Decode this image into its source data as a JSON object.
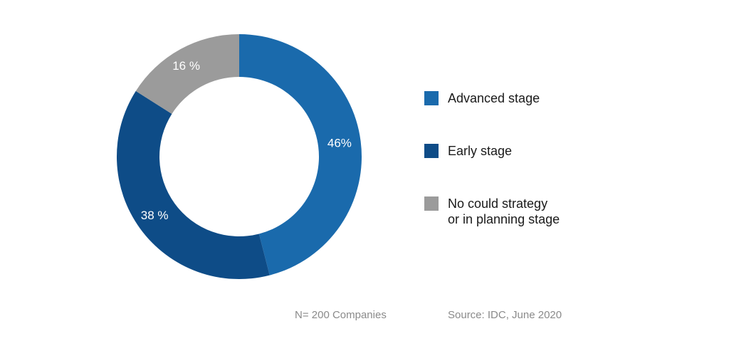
{
  "chart_data": {
    "type": "pie",
    "categories": [
      "Advanced stage",
      "Early stage",
      "No could strategy\nor in planning stage"
    ],
    "values": [
      46,
      38,
      16
    ],
    "data_labels": [
      "46%",
      "38 %",
      "16 %"
    ],
    "colors": [
      "#1a6aac",
      "#0e4c87",
      "#9b9b9b"
    ],
    "donut": true,
    "legend_position": "right"
  },
  "footnotes": {
    "sample": "N= 200 Companies",
    "source": "Source: IDC, June 2020"
  }
}
